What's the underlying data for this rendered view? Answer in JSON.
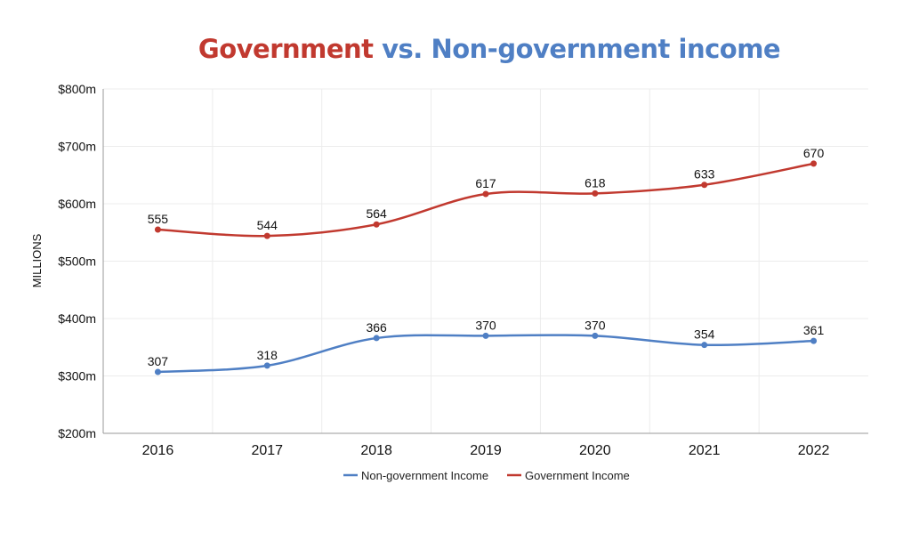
{
  "title": {
    "part1": "Government",
    "part2": "vs.",
    "part3": "Non-government income"
  },
  "colors": {
    "government": "#c1392f",
    "non_government": "#4f7fc4"
  },
  "chart_data": {
    "type": "line",
    "title": "Government vs. Non-government income",
    "xlabel": "",
    "ylabel": "MILLIONS",
    "x": [
      "2016",
      "2017",
      "2018",
      "2019",
      "2020",
      "2021",
      "2022"
    ],
    "ylim": [
      200,
      800
    ],
    "yticks": [
      200,
      300,
      400,
      500,
      600,
      700,
      800
    ],
    "ytick_labels": [
      "$200m",
      "$300m",
      "$400m",
      "$500m",
      "$600m",
      "$700m",
      "$800m"
    ],
    "grid": true,
    "legend": "bottom",
    "series": [
      {
        "name": "Non-government Income",
        "color": "#4f7fc4",
        "values": [
          307,
          318,
          366,
          370,
          370,
          354,
          361
        ],
        "labels": [
          "307",
          "318",
          "366",
          "370",
          "370",
          "354",
          "361"
        ]
      },
      {
        "name": "Government Income",
        "color": "#c1392f",
        "values": [
          555,
          544,
          564,
          617,
          618,
          633,
          670
        ],
        "labels": [
          "555",
          "544",
          "564",
          "617",
          "618",
          "633",
          "670"
        ]
      }
    ]
  }
}
